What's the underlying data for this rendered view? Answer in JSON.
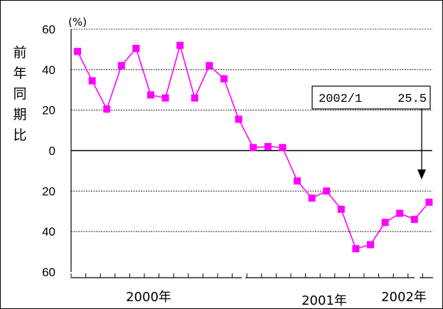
{
  "chart_data": {
    "type": "line",
    "unit_label": "(%)",
    "ylabel": "前年同期比",
    "yticks": [
      "60",
      "40",
      "20",
      "0",
      "20",
      "40",
      "60"
    ],
    "ylim": [
      -60,
      60
    ],
    "grid": "dashed horizontal",
    "year_labels": [
      "2000年",
      "2001年",
      "2002年"
    ],
    "series": [
      {
        "color": "#ff00ff",
        "marker": "square",
        "x": [
          "2000/1",
          "2000/2",
          "2000/3",
          "2000/4",
          "2000/5",
          "2000/6",
          "2000/7",
          "2000/8",
          "2000/9",
          "2000/10",
          "2000/11",
          "2000/12",
          "2001/1",
          "2001/2",
          "2001/3",
          "2001/4",
          "2001/5",
          "2001/6",
          "2001/7",
          "2001/8",
          "2001/9",
          "2001/10",
          "2001/11",
          "2001/12",
          "2002/1"
        ],
        "values": [
          49,
          34.5,
          20.5,
          42,
          50.5,
          27.5,
          26,
          52,
          26,
          42,
          35.5,
          15.5,
          1.5,
          2,
          1.5,
          -15,
          -23.5,
          -20,
          -29,
          -48.5,
          -46.5,
          -35.5,
          -31,
          -34,
          -25.5
        ]
      }
    ],
    "annotation": {
      "date": "2002/1",
      "value": "25.5"
    }
  }
}
